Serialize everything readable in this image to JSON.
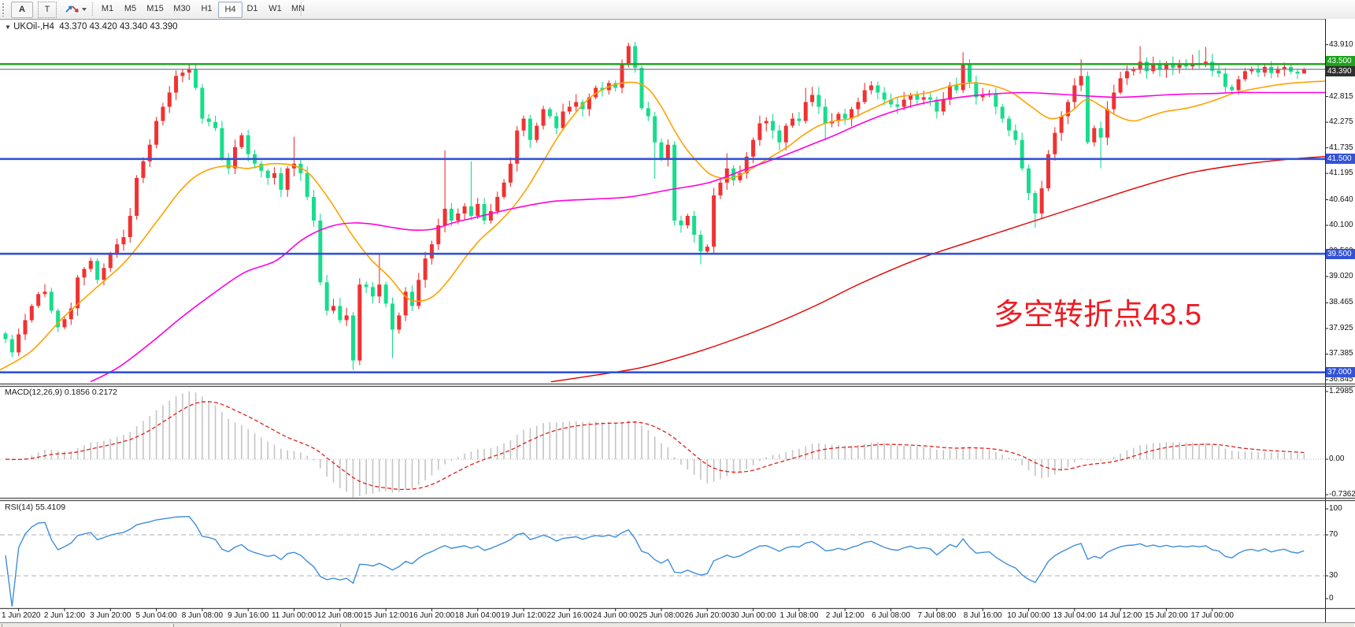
{
  "toolbar": {
    "icon_a": "A",
    "icon_t": "T",
    "timeframes": [
      "M1",
      "M5",
      "M15",
      "M30",
      "H1",
      "H4",
      "D1",
      "W1",
      "MN"
    ],
    "active_timeframe": "H4"
  },
  "title": {
    "symbol_period": "UKOil-,H4",
    "ohlc": "43.370 43.420 43.340 43.390"
  },
  "annotation": {
    "text": "多空转折点43.5",
    "color": "#ed1c24"
  },
  "macd_panel": {
    "label": "MACD(12,26,9)",
    "values": "0.1856 0.2172",
    "scale": [
      "1.2985",
      "0.00",
      "-0.7362"
    ]
  },
  "rsi_panel": {
    "label": "RSI(14)",
    "value": "55.4109",
    "scale": [
      "100",
      "70",
      "30",
      "0"
    ],
    "levels": [
      70,
      30
    ]
  },
  "price_scale": {
    "labels": [
      "43.910",
      "42.815",
      "42.275",
      "41.735",
      "41.195",
      "40.640",
      "40.100",
      "39.560",
      "39.020",
      "38.465",
      "37.925",
      "37.385",
      "36.845"
    ],
    "badges": [
      {
        "text": "43.500",
        "price": 43.5,
        "color": "#1da11d"
      },
      {
        "text": "43.390",
        "price": 43.39,
        "color": "#2f2f2f"
      },
      {
        "text": "41.500",
        "price": 41.5,
        "color": "#3353d6"
      },
      {
        "text": "39.500",
        "price": 39.5,
        "color": "#3353d6"
      },
      {
        "text": "37.000",
        "price": 37.0,
        "color": "#3353d6"
      }
    ]
  },
  "time_axis": [
    "1 Jun 2020",
    "2 Jun 12:00",
    "3 Jun 20:00",
    "5 Jun 04:00",
    "8 Jun 08:00",
    "9 Jun 16:00",
    "11 Jun 00:00",
    "12 Jun 08:00",
    "15 Jun 12:00",
    "16 Jun 20:00",
    "18 Jun 04:00",
    "19 Jun 12:00",
    "22 Jun 16:00",
    "24 Jun 00:00",
    "25 Jun 08:00",
    "26 Jun 20:00",
    "30 Jun 00:00",
    "1 Jul 08:00",
    "2 Jul 12:00",
    "6 Jul 08:00",
    "7 Jul 08:00",
    "8 Jul 16:00",
    "10 Jul 00:00",
    "13 Jul 04:00",
    "14 Jul 12:00",
    "15 Jul 20:00",
    "17 Jul 00:00"
  ],
  "chart_data": {
    "type": "candlestick",
    "symbol": "UKOil-",
    "timeframe": "H4",
    "colors": {
      "bull": "#f03232",
      "bear": "#17dd8c",
      "ma_fast": "#ffa200",
      "ma_mid": "#ff00e0",
      "ma_slow": "#e00000",
      "macd_hist": "#c4c4c4",
      "macd_signal": "#e02020",
      "rsi": "#3f8edb"
    },
    "hlines": [
      {
        "price": 43.5,
        "color": "#22a522",
        "width": 2.6
      },
      {
        "price": 43.39,
        "color": "#708090",
        "width": 1.2
      },
      {
        "price": 41.5,
        "color": "#3353d6",
        "width": 2.6
      },
      {
        "price": 39.5,
        "color": "#3353d6",
        "width": 2.6
      },
      {
        "price": 37.0,
        "color": "#3353d6",
        "width": 2.6
      }
    ],
    "closes": [
      37.7,
      37.42,
      37.8,
      38.1,
      38.4,
      38.65,
      38.7,
      38.3,
      37.95,
      38.12,
      38.35,
      39.0,
      39.18,
      39.35,
      38.95,
      39.2,
      39.5,
      39.7,
      39.85,
      40.3,
      41.1,
      41.45,
      41.8,
      42.3,
      42.6,
      42.9,
      43.25,
      43.32,
      43.4,
      43.0,
      42.35,
      42.28,
      42.15,
      41.5,
      41.3,
      41.75,
      42.0,
      41.6,
      41.4,
      41.25,
      41.1,
      41.2,
      40.85,
      41.3,
      41.4,
      41.2,
      40.7,
      40.2,
      38.9,
      38.3,
      38.4,
      38.1,
      38.2,
      37.25,
      38.85,
      38.8,
      38.6,
      38.85,
      38.45,
      37.9,
      38.2,
      38.7,
      38.4,
      38.95,
      39.4,
      39.7,
      40.1,
      40.45,
      40.2,
      40.35,
      40.5,
      40.3,
      40.55,
      40.2,
      40.4,
      40.7,
      41.0,
      41.4,
      42.1,
      42.35,
      41.9,
      42.2,
      42.55,
      42.4,
      42.15,
      42.5,
      42.6,
      42.7,
      42.55,
      42.8,
      43.0,
      42.95,
      43.1,
      43.0,
      43.5,
      43.88,
      43.42,
      42.57,
      42.4,
      41.85,
      41.5,
      41.8,
      40.2,
      40.1,
      40.3,
      39.9,
      39.55,
      39.65,
      40.73,
      41.0,
      41.3,
      41.05,
      41.2,
      41.55,
      41.9,
      42.25,
      42.3,
      42.1,
      41.85,
      42.2,
      42.35,
      42.3,
      42.7,
      42.85,
      42.6,
      42.25,
      42.3,
      42.45,
      42.35,
      42.55,
      42.7,
      42.95,
      43.05,
      42.9,
      42.75,
      42.65,
      42.6,
      42.75,
      42.85,
      42.75,
      42.8,
      42.75,
      42.5,
      42.75,
      43.05,
      42.95,
      43.5,
      43.12,
      42.8,
      42.85,
      42.88,
      42.6,
      42.35,
      42.1,
      41.9,
      41.3,
      40.78,
      40.35,
      40.88,
      41.6,
      42.05,
      42.4,
      42.7,
      43.05,
      43.25,
      41.85,
      42.15,
      41.95,
      42.55,
      42.9,
      43.2,
      43.35,
      43.4,
      43.55,
      43.35,
      43.5,
      43.38,
      43.52,
      43.42,
      43.5,
      43.45,
      43.52,
      43.48,
      43.55,
      43.36,
      43.3,
      43.02,
      42.95,
      43.18,
      43.35,
      43.4,
      43.32,
      43.44,
      43.31,
      43.4,
      43.44,
      43.34,
      43.3,
      43.39
    ],
    "first_open": 37.82,
    "wick_overrides": {
      "1": {
        "low": 37.32
      },
      "44": {
        "high": 41.97
      },
      "53": {
        "low": 37.05
      },
      "57": {
        "high": 39.5
      },
      "59": {
        "low": 37.3
      },
      "67": {
        "high": 41.68
      },
      "71": {
        "high": 41.45
      },
      "95": {
        "high": 43.95
      },
      "96": {
        "high": 43.97
      },
      "99": {
        "low": 41.08
      },
      "106": {
        "low": 39.28
      },
      "110": {
        "high": 41.62
      },
      "122": {
        "high": 43.0
      },
      "125": {
        "low": 41.88
      },
      "146": {
        "high": 43.75
      },
      "157": {
        "low": 40.05
      },
      "164": {
        "high": 43.6
      },
      "167": {
        "low": 41.3
      },
      "173": {
        "high": 43.88
      },
      "181": {
        "high": 43.7
      },
      "182": {
        "high": 43.8
      },
      "183": {
        "high": 43.86
      },
      "198": {
        "high": 43.42,
        "low": 43.34
      }
    },
    "overlays": {
      "ma_fast": [
        [
          0,
          37.05
        ],
        [
          40,
          37.45
        ],
        [
          80,
          38.15
        ],
        [
          120,
          38.75
        ],
        [
          160,
          39.35
        ],
        [
          200,
          40.2
        ],
        [
          230,
          40.85
        ],
        [
          255,
          41.2
        ],
        [
          285,
          41.35
        ],
        [
          315,
          41.3
        ],
        [
          345,
          41.4
        ],
        [
          375,
          41.35
        ],
        [
          395,
          41.15
        ],
        [
          420,
          40.6
        ],
        [
          445,
          39.95
        ],
        [
          470,
          39.4
        ],
        [
          495,
          39.0
        ],
        [
          515,
          38.6
        ],
        [
          530,
          38.5
        ],
        [
          550,
          38.6
        ],
        [
          570,
          38.95
        ],
        [
          590,
          39.4
        ],
        [
          610,
          39.8
        ],
        [
          630,
          40.1
        ],
        [
          650,
          40.45
        ],
        [
          670,
          40.9
        ],
        [
          690,
          41.45
        ],
        [
          710,
          42.0
        ],
        [
          730,
          42.45
        ],
        [
          750,
          42.8
        ],
        [
          770,
          43.0
        ],
        [
          790,
          43.1
        ],
        [
          810,
          43.1
        ],
        [
          825,
          42.95
        ],
        [
          840,
          42.6
        ],
        [
          855,
          42.15
        ],
        [
          870,
          41.75
        ],
        [
          885,
          41.45
        ],
        [
          900,
          41.2
        ],
        [
          915,
          41.1
        ],
        [
          930,
          41.1
        ],
        [
          945,
          41.2
        ],
        [
          960,
          41.35
        ],
        [
          980,
          41.55
        ],
        [
          1000,
          41.75
        ],
        [
          1020,
          42.0
        ],
        [
          1040,
          42.2
        ],
        [
          1060,
          42.3
        ],
        [
          1080,
          42.35
        ],
        [
          1100,
          42.5
        ],
        [
          1120,
          42.65
        ],
        [
          1140,
          42.8
        ],
        [
          1160,
          42.85
        ],
        [
          1180,
          42.9
        ],
        [
          1200,
          43.0
        ],
        [
          1220,
          43.08
        ],
        [
          1240,
          43.1
        ],
        [
          1260,
          43.05
        ],
        [
          1285,
          42.9
        ],
        [
          1310,
          42.6
        ],
        [
          1335,
          42.35
        ],
        [
          1360,
          42.5
        ],
        [
          1380,
          42.75
        ],
        [
          1400,
          42.6
        ],
        [
          1420,
          42.4
        ],
        [
          1440,
          42.3
        ],
        [
          1460,
          42.4
        ],
        [
          1480,
          42.5
        ],
        [
          1500,
          42.55
        ],
        [
          1520,
          42.62
        ],
        [
          1545,
          42.75
        ],
        [
          1570,
          42.9
        ],
        [
          1600,
          43.0
        ],
        [
          1630,
          43.08
        ],
        [
          1660,
          43.12
        ],
        [
          1683,
          43.14
        ]
      ],
      "ma_mid": [
        [
          115,
          36.8
        ],
        [
          150,
          37.1
        ],
        [
          190,
          37.6
        ],
        [
          230,
          38.15
        ],
        [
          270,
          38.65
        ],
        [
          310,
          39.1
        ],
        [
          350,
          39.35
        ],
        [
          380,
          39.75
        ],
        [
          400,
          39.95
        ],
        [
          425,
          40.1
        ],
        [
          450,
          40.15
        ],
        [
          475,
          40.12
        ],
        [
          500,
          40.05
        ],
        [
          525,
          40.0
        ],
        [
          550,
          40.02
        ],
        [
          575,
          40.15
        ],
        [
          600,
          40.25
        ],
        [
          650,
          40.45
        ],
        [
          700,
          40.6
        ],
        [
          750,
          40.65
        ],
        [
          800,
          40.7
        ],
        [
          850,
          40.85
        ],
        [
          900,
          41.0
        ],
        [
          950,
          41.3
        ],
        [
          1000,
          41.6
        ],
        [
          1030,
          41.8
        ],
        [
          1060,
          42.0
        ],
        [
          1090,
          42.22
        ],
        [
          1120,
          42.42
        ],
        [
          1150,
          42.58
        ],
        [
          1180,
          42.7
        ],
        [
          1210,
          42.78
        ],
        [
          1240,
          42.84
        ],
        [
          1270,
          42.88
        ],
        [
          1300,
          42.9
        ],
        [
          1330,
          42.88
        ],
        [
          1360,
          42.85
        ],
        [
          1390,
          42.82
        ],
        [
          1420,
          42.8
        ],
        [
          1450,
          42.82
        ],
        [
          1480,
          42.85
        ],
        [
          1510,
          42.87
        ],
        [
          1540,
          42.88
        ],
        [
          1570,
          42.9
        ],
        [
          1600,
          42.9
        ],
        [
          1640,
          42.9
        ],
        [
          1683,
          42.9
        ]
      ],
      "ma_slow": [
        [
          700,
          36.8
        ],
        [
          760,
          36.95
        ],
        [
          815,
          37.1
        ],
        [
          870,
          37.35
        ],
        [
          925,
          37.65
        ],
        [
          980,
          38.0
        ],
        [
          1035,
          38.4
        ],
        [
          1090,
          38.85
        ],
        [
          1145,
          39.25
        ],
        [
          1185,
          39.5
        ],
        [
          1250,
          39.85
        ],
        [
          1315,
          40.2
        ],
        [
          1380,
          40.55
        ],
        [
          1445,
          40.9
        ],
        [
          1510,
          41.2
        ],
        [
          1575,
          41.38
        ],
        [
          1640,
          41.5
        ],
        [
          1683,
          41.55
        ]
      ]
    }
  }
}
